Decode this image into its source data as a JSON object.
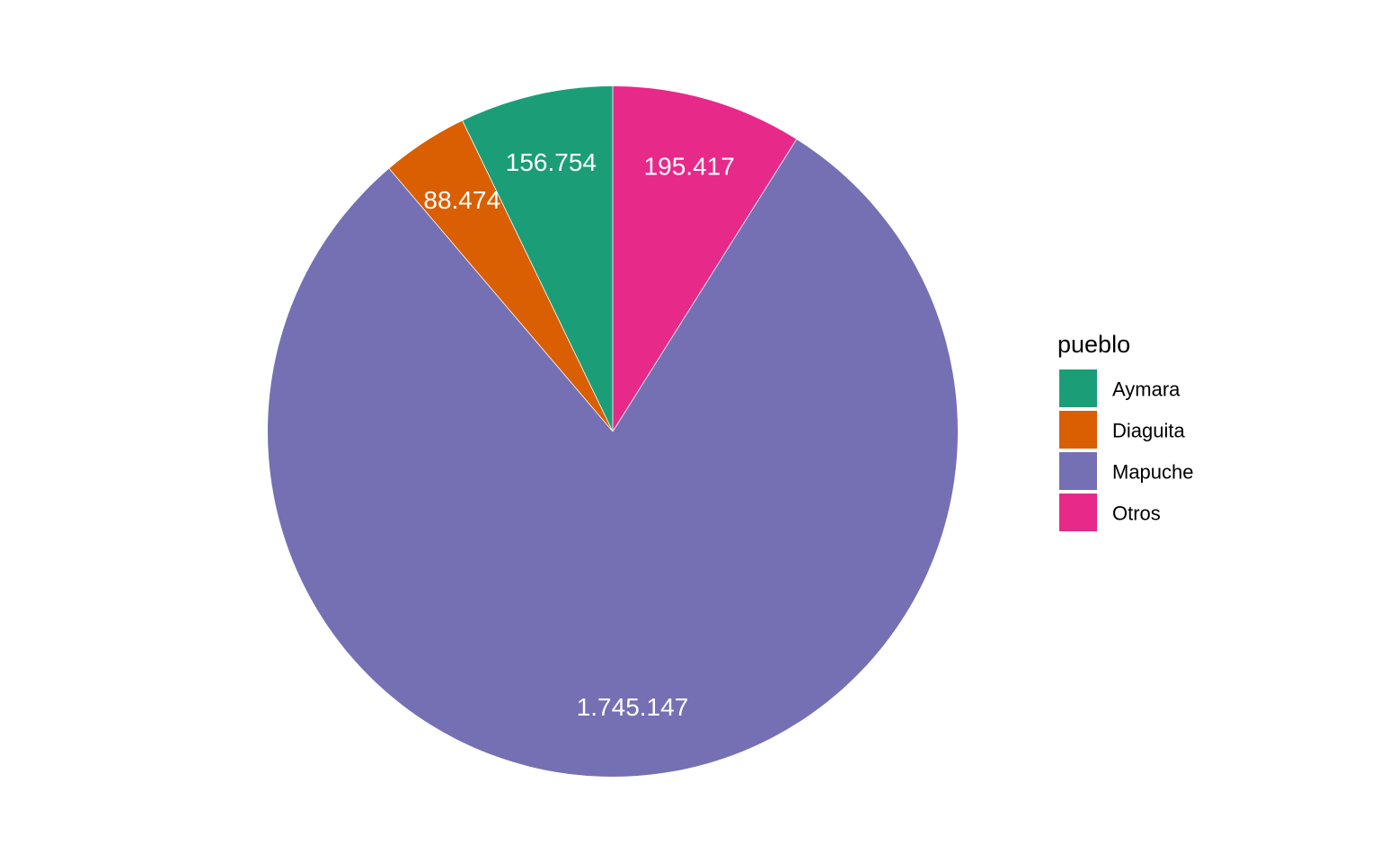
{
  "chart_data": {
    "type": "pie",
    "categories": [
      "Aymara",
      "Diaguita",
      "Mapuche",
      "Otros"
    ],
    "values": [
      156754,
      88474,
      1745147,
      195417
    ],
    "data_labels": [
      "156.754",
      "88.474",
      "1.745.147",
      "195.417"
    ],
    "colors": [
      "#1b9e77",
      "#d95f02",
      "#7570b3",
      "#e7298a"
    ],
    "slice_order_counterclockwise_from_top": [
      "Aymara",
      "Diaguita",
      "Mapuche",
      "Otros"
    ],
    "legend": {
      "title": "pueblo",
      "placement": "right",
      "entries": [
        "Aymara",
        "Diaguita",
        "Mapuche",
        "Otros"
      ]
    },
    "title": "",
    "xlabel": "",
    "ylabel": ""
  }
}
